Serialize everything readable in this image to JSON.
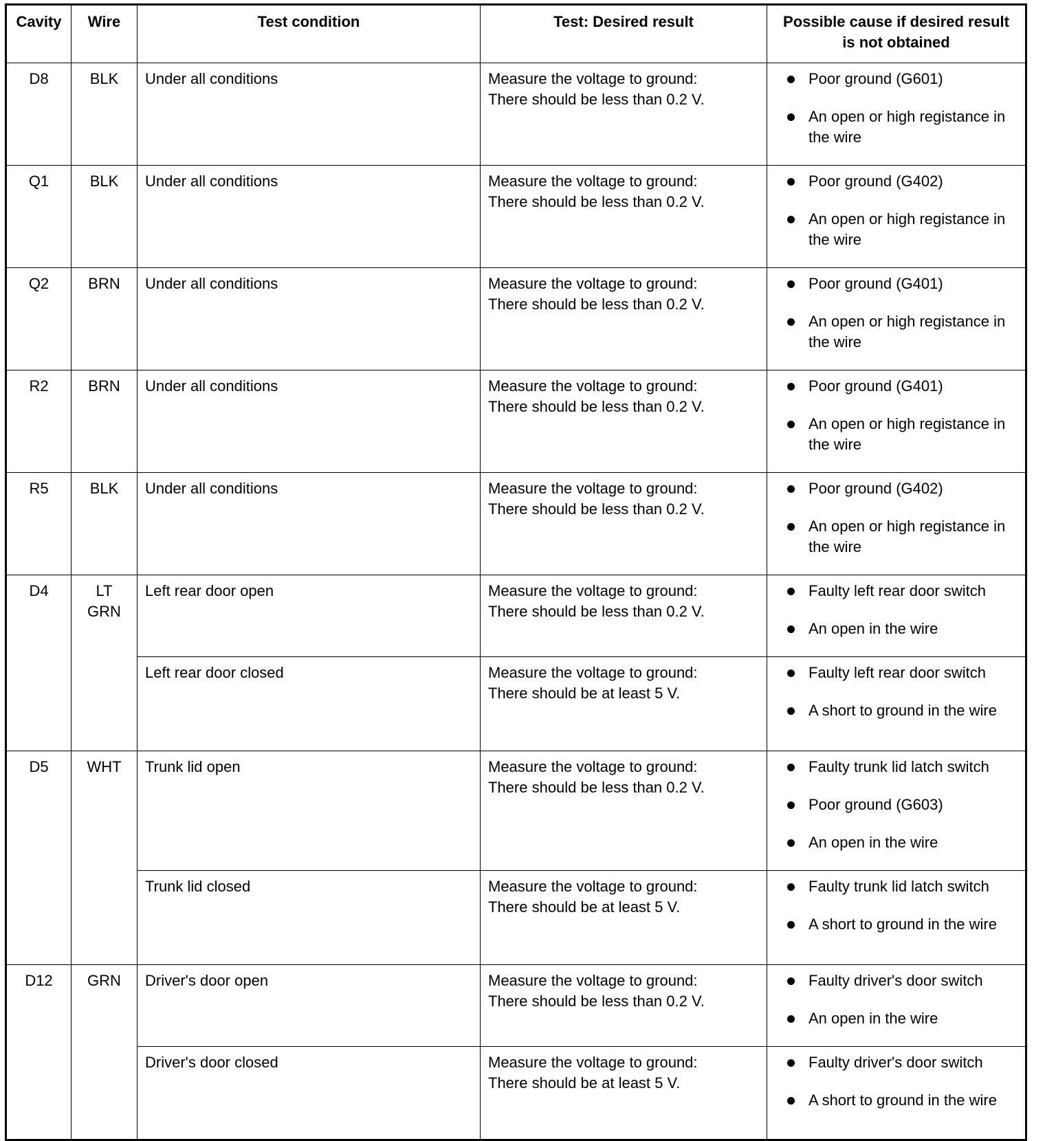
{
  "headers": [
    "Cavity",
    "Wire",
    "Test condition",
    "Test: Desired result",
    "Possible cause if desired result is not obtained"
  ],
  "rows": [
    {
      "cavity": "D8",
      "wire": "BLK",
      "tests": [
        {
          "condition": "Under all conditions",
          "result": [
            "Measure the voltage to ground:",
            "There should be less than 0.2 V."
          ],
          "causes": [
            "Poor ground (G601)",
            "An open or high registance in the wire"
          ]
        }
      ]
    },
    {
      "cavity": "Q1",
      "wire": "BLK",
      "tests": [
        {
          "condition": "Under all conditions",
          "result": [
            "Measure the voltage to ground:",
            "There should be less than 0.2 V."
          ],
          "causes": [
            "Poor ground (G402)",
            "An open or high registance in the wire"
          ]
        }
      ]
    },
    {
      "cavity": "Q2",
      "wire": "BRN",
      "tests": [
        {
          "condition": "Under all conditions",
          "result": [
            "Measure the voltage to ground:",
            "There should be less than 0.2 V."
          ],
          "causes": [
            "Poor ground (G401)",
            "An open or high registance in the wire"
          ]
        }
      ]
    },
    {
      "cavity": "R2",
      "wire": "BRN",
      "tests": [
        {
          "condition": "Under all conditions",
          "result": [
            "Measure the voltage to ground:",
            "There should be less than 0.2 V."
          ],
          "causes": [
            "Poor ground (G401)",
            "An open or high registance in the wire"
          ]
        }
      ]
    },
    {
      "cavity": "R5",
      "wire": "BLK",
      "tests": [
        {
          "condition": "Under all conditions",
          "result": [
            "Measure the voltage to ground:",
            "There should be less than 0.2 V."
          ],
          "causes": [
            "Poor ground (G402)",
            "An open or high registance in the wire"
          ]
        }
      ]
    },
    {
      "cavity": "D4",
      "wire": "LT GRN",
      "tests": [
        {
          "condition": "Left rear door open",
          "result": [
            "Measure the voltage to ground:",
            "There should be less than 0.2 V."
          ],
          "causes": [
            "Faulty left rear door switch",
            "An open in the wire"
          ]
        },
        {
          "condition": "Left rear door closed",
          "result": [
            "Measure the voltage to ground:",
            "There should be at least 5 V."
          ],
          "causes": [
            "Faulty left rear door switch",
            "A short to ground in the wire"
          ]
        }
      ]
    },
    {
      "cavity": "D5",
      "wire": "WHT",
      "tests": [
        {
          "condition": "Trunk lid open",
          "result": [
            "Measure the voltage to ground:",
            "There should be less than 0.2 V."
          ],
          "causes": [
            "Faulty trunk lid latch switch",
            "Poor ground (G603)",
            "An open in the wire"
          ]
        },
        {
          "condition": "Trunk lid closed",
          "result": [
            "Measure the voltage to ground:",
            "There should be at least 5 V."
          ],
          "causes": [
            "Faulty trunk lid latch switch",
            "A short to ground in the wire"
          ]
        }
      ]
    },
    {
      "cavity": "D12",
      "wire": "GRN",
      "tests": [
        {
          "condition": "Driver's door open",
          "result": [
            "Measure the voltage to ground:",
            "There should be less than 0.2 V."
          ],
          "causes": [
            "Faulty driver's door switch",
            "An open in the wire"
          ]
        },
        {
          "condition": "Driver's door closed",
          "result": [
            "Measure the voltage to ground:",
            "There should be at least 5 V."
          ],
          "causes": [
            "Faulty driver's door switch",
            "A short to ground in the wire"
          ]
        }
      ]
    }
  ]
}
